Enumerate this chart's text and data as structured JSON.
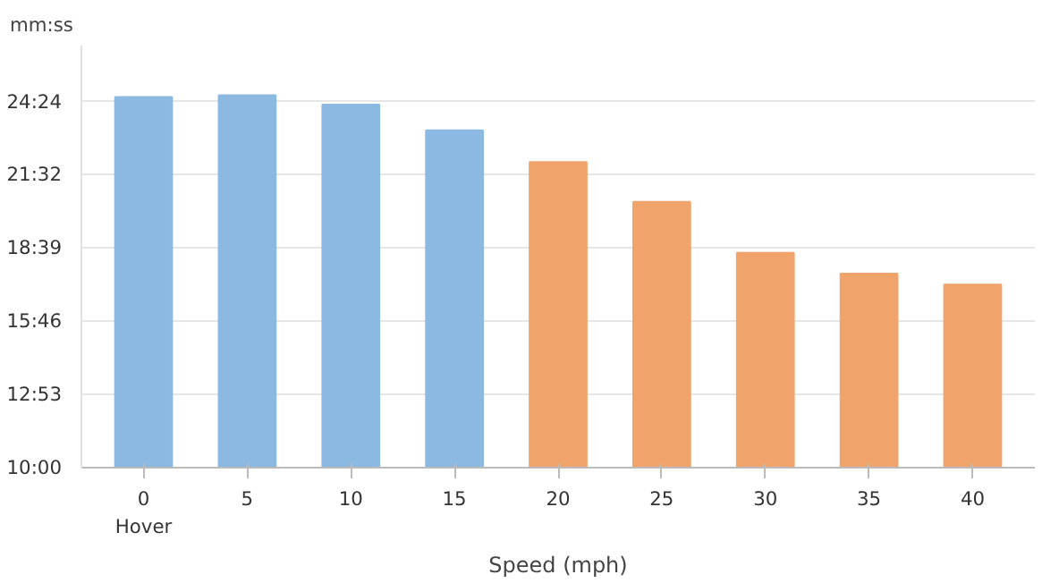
{
  "chart_data": {
    "type": "bar",
    "ylabel": "mm:ss",
    "xlabel": "Speed (mph)",
    "categories": [
      "0\nHover",
      "5",
      "10",
      "15",
      "20",
      "25",
      "30",
      "35",
      "40"
    ],
    "values": [
      24.58,
      24.65,
      24.28,
      23.27,
      22.02,
      20.45,
      18.45,
      17.63,
      17.2
    ],
    "colors": [
      "#8cb9e1",
      "#8cb9e1",
      "#8cb9e1",
      "#8cb9e1",
      "#f0a46c",
      "#f0a46c",
      "#f0a46c",
      "#f0a46c",
      "#f0a46c"
    ],
    "ylim": [
      10,
      26.6
    ],
    "yticks": [
      {
        "value": 10,
        "label": "10:00"
      },
      {
        "value": 12.883,
        "label": "12:53"
      },
      {
        "value": 15.767,
        "label": "15:46"
      },
      {
        "value": 18.65,
        "label": "18:39"
      },
      {
        "value": 21.533,
        "label": "21:32"
      },
      {
        "value": 24.4,
        "label": "24:24"
      }
    ],
    "grid": "y"
  }
}
